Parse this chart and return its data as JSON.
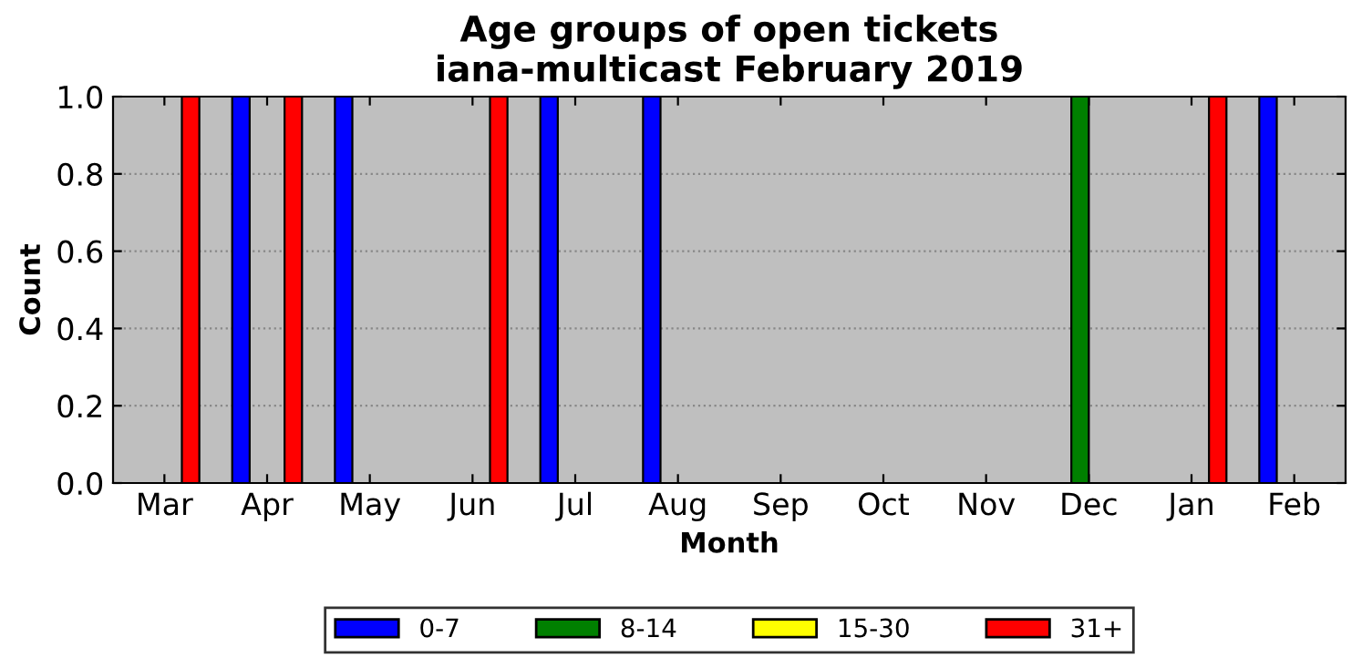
{
  "chart_data": {
    "type": "bar",
    "title": "Age groups of open tickets\niana-multicast February 2019",
    "xlabel": "Month",
    "ylabel": "Count",
    "categories": [
      "Mar",
      "Apr",
      "May",
      "Jun",
      "Jul",
      "Aug",
      "Sep",
      "Oct",
      "Nov",
      "Dec",
      "Jan",
      "Feb"
    ],
    "series": [
      {
        "name": "0-7",
        "color": "#0000ff",
        "values": [
          0,
          1,
          1,
          0,
          1,
          1,
          0,
          0,
          0,
          0,
          0,
          1
        ]
      },
      {
        "name": "8-14",
        "color": "#008000",
        "values": [
          0,
          0,
          0,
          0,
          0,
          0,
          0,
          0,
          0,
          1,
          0,
          0
        ]
      },
      {
        "name": "15-30",
        "color": "#ffff00",
        "values": [
          0,
          0,
          0,
          0,
          0,
          0,
          0,
          0,
          0,
          0,
          0,
          0
        ]
      },
      {
        "name": "31+",
        "color": "#ff0000",
        "values": [
          1,
          1,
          0,
          1,
          0,
          0,
          0,
          0,
          0,
          0,
          1,
          0
        ]
      }
    ],
    "ylim": [
      0,
      1
    ],
    "yticks": [
      {
        "value": 0,
        "label": "0.0"
      },
      {
        "value": 0.2,
        "label": "0.2"
      },
      {
        "value": 0.4,
        "label": "0.4"
      },
      {
        "value": 0.6,
        "label": "0.6"
      },
      {
        "value": 0.8,
        "label": "0.8"
      },
      {
        "value": 1,
        "label": "1.0"
      }
    ],
    "grid": "y",
    "legend": "bottom"
  }
}
